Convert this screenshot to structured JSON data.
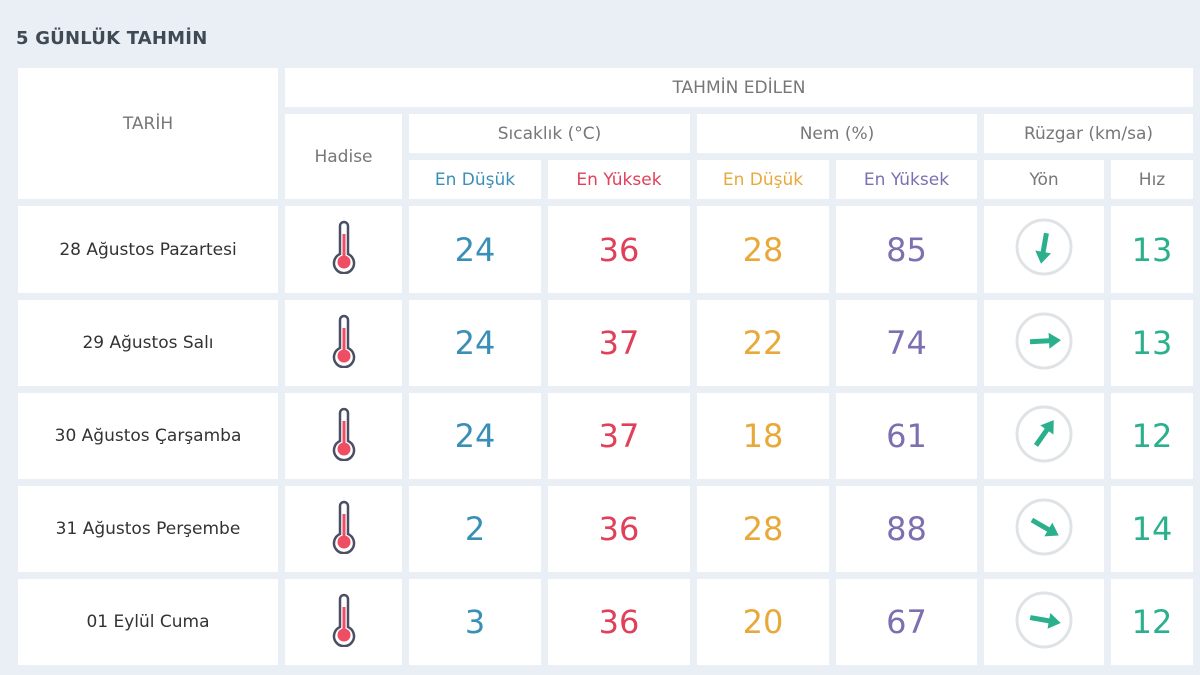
{
  "title": "5 GÜNLÜK TAHMİN",
  "headers": {
    "date": "TARİH",
    "forecast": "TAHMİN EDİLEN",
    "event": "Hadise",
    "temperature": "Sıcaklık (°C)",
    "humidity": "Nem (%)",
    "wind": "Rüzgar (km/sa)",
    "temp_min": "En Düşük",
    "temp_max": "En Yüksek",
    "hum_min": "En Düşük",
    "hum_max": "En Yüksek",
    "wind_dir": "Yön",
    "wind_speed": "Hız"
  },
  "colors": {
    "temp_min": "#3a8fb7",
    "temp_max": "#e0405a",
    "hum_min": "#e8a93a",
    "hum_max": "#7d6fb0",
    "wind": "#2bb08d",
    "background": "#e9eff4"
  },
  "rows": [
    {
      "date": "28 Ağustos Pazartesi",
      "icon": "thermometer-icon",
      "temp_min": "24",
      "temp_max": "36",
      "hum_min": "28",
      "hum_max": "85",
      "wind_dir_deg": 190,
      "wind_speed": "13"
    },
    {
      "date": "29 Ağustos Salı",
      "icon": "thermometer-icon",
      "temp_min": "24",
      "temp_max": "37",
      "hum_min": "22",
      "hum_max": "74",
      "wind_dir_deg": 87,
      "wind_speed": "13"
    },
    {
      "date": "30 Ağustos Çarşamba",
      "icon": "thermometer-icon",
      "temp_min": "24",
      "temp_max": "37",
      "hum_min": "18",
      "hum_max": "61",
      "wind_dir_deg": 35,
      "wind_speed": "12"
    },
    {
      "date": "31 Ağustos Perşembe",
      "icon": "thermometer-icon",
      "temp_min": "2",
      "temp_max": "36",
      "hum_min": "28",
      "hum_max": "88",
      "wind_dir_deg": 120,
      "wind_speed": "14"
    },
    {
      "date": "01 Eylül Cuma",
      "icon": "thermometer-icon",
      "temp_min": "3",
      "temp_max": "36",
      "hum_min": "20",
      "hum_max": "67",
      "wind_dir_deg": 100,
      "wind_speed": "12"
    }
  ]
}
